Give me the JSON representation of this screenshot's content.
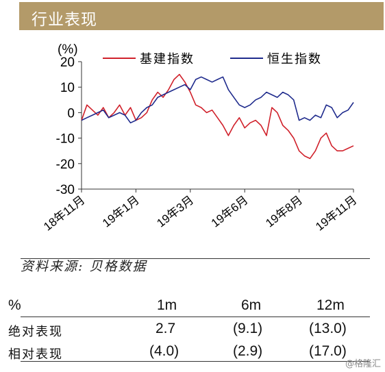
{
  "header": {
    "title": "行业表现"
  },
  "chart_data": {
    "type": "line",
    "ylabel": "(%)",
    "ylim": [
      -30,
      20
    ],
    "yticks": [
      20,
      10,
      0,
      -10,
      -20,
      -30
    ],
    "xticks": [
      "18年11月",
      "19年1月",
      "19年3月",
      "19年6月",
      "19年8月",
      "19年11月"
    ],
    "grid": false,
    "legend_position": "top",
    "series": [
      {
        "name": "基建指数",
        "color": "#d0202a",
        "x": [
          0,
          0.02,
          0.04,
          0.06,
          0.08,
          0.1,
          0.12,
          0.14,
          0.16,
          0.18,
          0.2,
          0.22,
          0.24,
          0.26,
          0.28,
          0.3,
          0.32,
          0.34,
          0.36,
          0.38,
          0.4,
          0.42,
          0.44,
          0.46,
          0.48,
          0.5,
          0.52,
          0.54,
          0.56,
          0.58,
          0.6,
          0.62,
          0.64,
          0.66,
          0.68,
          0.7,
          0.72,
          0.74,
          0.76,
          0.78,
          0.8,
          0.82,
          0.84,
          0.86,
          0.88,
          0.9,
          0.92,
          0.94,
          0.96,
          0.98,
          1.0
        ],
        "values": [
          -3,
          3,
          1,
          -1,
          2,
          -2,
          0,
          3,
          -1,
          2,
          -3,
          -2,
          0,
          5,
          8,
          6,
          9,
          13,
          15,
          12,
          8,
          3,
          2,
          0,
          1,
          -2,
          -5,
          -9,
          -5,
          -2,
          -6,
          -4,
          -3,
          -5,
          -9,
          2,
          0,
          -5,
          -7,
          -10,
          -15,
          -17,
          -18,
          -15,
          -10,
          -8,
          -13,
          -15,
          -15,
          -14,
          -13
        ]
      },
      {
        "name": "恒生指数",
        "color": "#1e2a8c",
        "x": [
          0,
          0.02,
          0.04,
          0.06,
          0.08,
          0.1,
          0.12,
          0.14,
          0.16,
          0.18,
          0.2,
          0.22,
          0.24,
          0.26,
          0.28,
          0.3,
          0.32,
          0.34,
          0.36,
          0.38,
          0.4,
          0.42,
          0.44,
          0.46,
          0.48,
          0.5,
          0.52,
          0.54,
          0.56,
          0.58,
          0.6,
          0.62,
          0.64,
          0.66,
          0.68,
          0.7,
          0.72,
          0.74,
          0.76,
          0.78,
          0.8,
          0.82,
          0.84,
          0.86,
          0.88,
          0.9,
          0.92,
          0.94,
          0.96,
          0.98,
          1.0
        ],
        "values": [
          -3,
          -2,
          -1,
          0,
          1,
          -2,
          -1,
          0,
          -1,
          -4,
          -3,
          0,
          2,
          3,
          6,
          7,
          8,
          9,
          10,
          11,
          9,
          13,
          14,
          13,
          12,
          13,
          14,
          9,
          6,
          3,
          2,
          3,
          5,
          6,
          8,
          7,
          6,
          8,
          7,
          5,
          -3,
          -2,
          -3,
          -1,
          -2,
          3,
          2,
          -2,
          0,
          1,
          4
        ]
      }
    ]
  },
  "source": "资料来源: 贝格数据",
  "table": {
    "header": [
      "%",
      "1m",
      "6m",
      "12m"
    ],
    "rows": [
      {
        "label": "绝对表现",
        "values": [
          "2.7",
          "(9.1)",
          "(13.0)"
        ]
      },
      {
        "label": "相对表现",
        "values": [
          "(4.0)",
          "(2.9)",
          "(17.0)"
        ]
      }
    ]
  },
  "watermark": "@格隆汇"
}
